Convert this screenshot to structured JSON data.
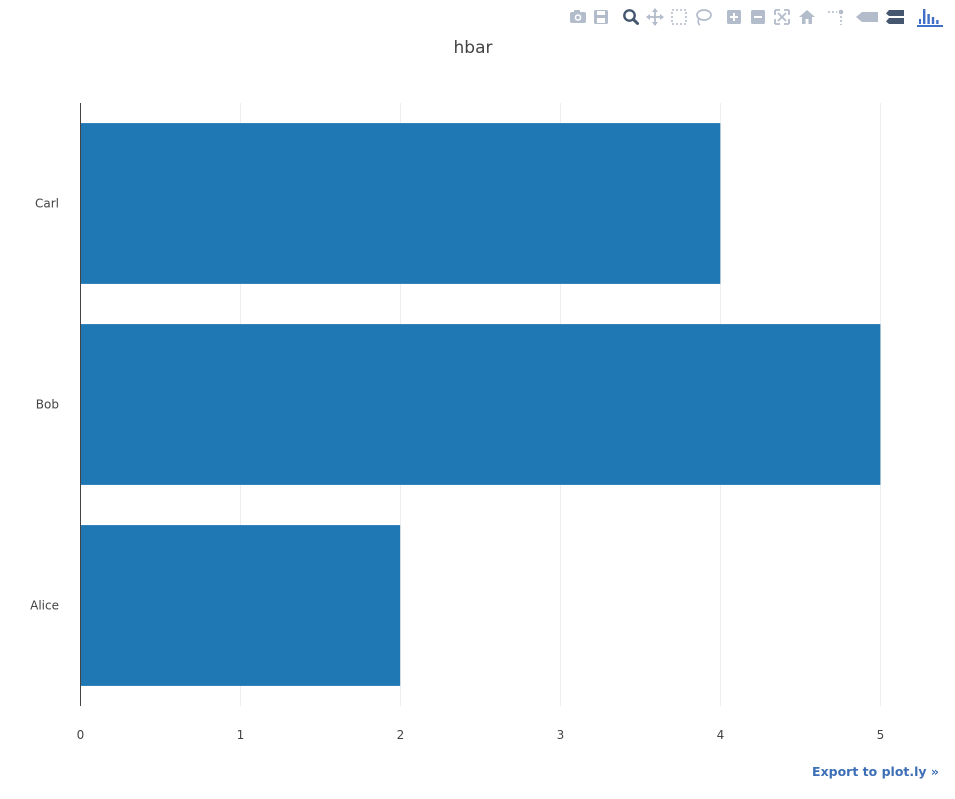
{
  "modebar": {
    "buttons": [
      {
        "icon": "camera-icon",
        "title": "Download plot as a png"
      },
      {
        "icon": "save-icon",
        "title": "Save and edit plot in cloud"
      },
      {
        "icon": "zoom-icon",
        "title": "Zoom"
      },
      {
        "icon": "pan-icon",
        "title": "Pan"
      },
      {
        "icon": "box-select-icon",
        "title": "Box Select"
      },
      {
        "icon": "lasso-select-icon",
        "title": "Lasso Select"
      },
      {
        "icon": "zoom-in-icon",
        "title": "Zoom in"
      },
      {
        "icon": "zoom-out-icon",
        "title": "Zoom out"
      },
      {
        "icon": "autoscale-icon",
        "title": "Autoscale"
      },
      {
        "icon": "home-icon",
        "title": "Reset axes"
      },
      {
        "icon": "spikelines-icon",
        "title": "Toggle Spike Lines"
      },
      {
        "icon": "hover-closest-icon",
        "title": "Show closest data on hover"
      },
      {
        "icon": "hover-compare-icon",
        "title": "Compare data on hover"
      },
      {
        "icon": "plotly-logo-icon",
        "title": "Produced with Plotly"
      }
    ],
    "icon_color": "#b3bccb",
    "active_color": "#44576e",
    "logo_color": "#3f6fc6"
  },
  "export_link": {
    "label": "Export to plot.ly »"
  },
  "chart_data": {
    "type": "bar",
    "orientation": "horizontal",
    "title": "hbar",
    "categories": [
      "Alice",
      "Bob",
      "Carl"
    ],
    "values": [
      2,
      5,
      4
    ],
    "xlim": [
      0,
      5.36
    ],
    "xticks": [
      0,
      1,
      2,
      3,
      4,
      5
    ],
    "xgrid": true,
    "ygrid": false,
    "bar_color": "#1f77b4",
    "grid_color": "#eeeeee",
    "axis_color": "#444444"
  }
}
